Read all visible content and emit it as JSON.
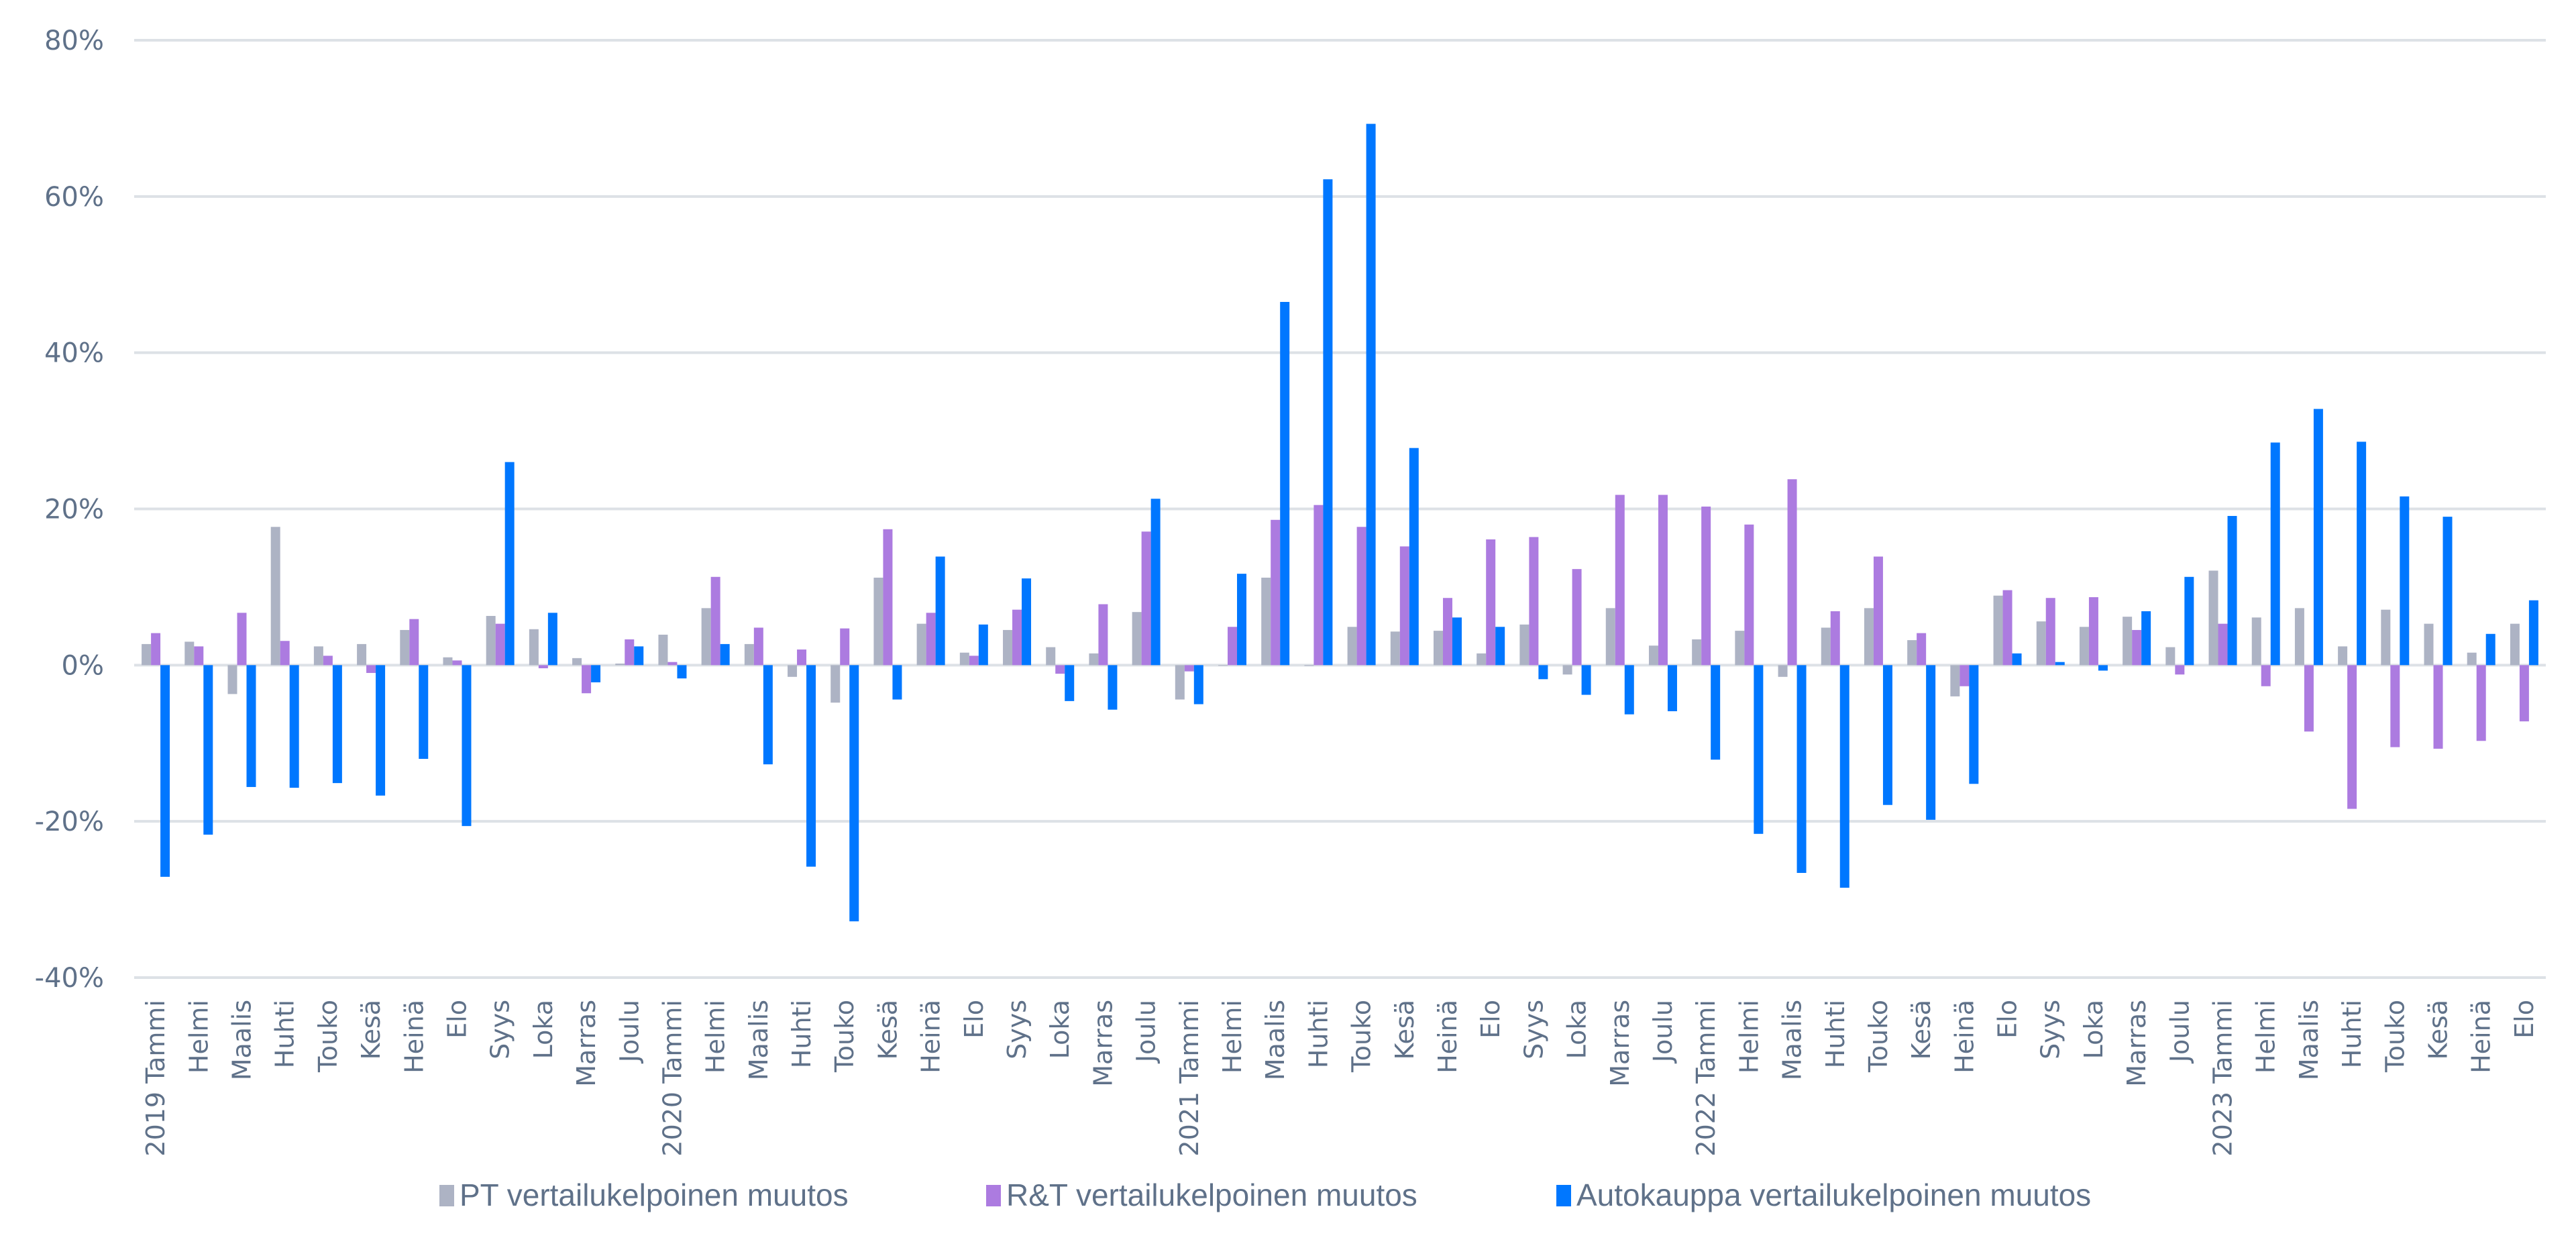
{
  "chart_data": {
    "type": "bar",
    "title": "",
    "xlabel": "",
    "ylabel": "",
    "ylim": [
      -40,
      80
    ],
    "yticks": [
      -40,
      -20,
      0,
      20,
      40,
      60,
      80
    ],
    "ytick_format": "percent",
    "grid": true,
    "legend_position": "bottom",
    "categories": [
      "2019 Tammi",
      "Helmi",
      "Maalis",
      "Huhti",
      "Touko",
      "Kesä",
      "Heinä",
      "Elo",
      "Syys",
      "Loka",
      "Marras",
      "Joulu",
      "2020 Tammi",
      "Helmi",
      "Maalis",
      "Huhti",
      "Touko",
      "Kesä",
      "Heinä",
      "Elo",
      "Syys",
      "Loka",
      "Marras",
      "Joulu",
      "2021 Tammi",
      "Helmi",
      "Maalis",
      "Huhti",
      "Touko",
      "Kesä",
      "Heinä",
      "Elo",
      "Syys",
      "Loka",
      "Marras",
      "Joulu",
      "2022 Tammi",
      "Helmi",
      "Maalis",
      "Huhti",
      "Touko",
      "Kesä",
      "Heinä",
      "Elo",
      "Syys",
      "Loka",
      "Marras",
      "Joulu",
      "2023 Tammi",
      "Helmi",
      "Maalis",
      "Huhti",
      "Touko",
      "Kesä",
      "Heinä",
      "Elo"
    ],
    "series": [
      {
        "name": "PT vertailukelpoinen muutos",
        "color": "#adb3c4",
        "values": [
          2.7,
          3.0,
          -3.7,
          17.7,
          2.4,
          2.7,
          4.5,
          1.0,
          6.3,
          4.6,
          0.9,
          0.2,
          3.9,
          7.3,
          2.7,
          -1.5,
          -4.8,
          11.2,
          5.3,
          1.6,
          4.5,
          2.3,
          1.5,
          6.8,
          -4.4,
          0.0,
          11.2,
          -0.1,
          4.9,
          4.3,
          4.4,
          1.5,
          5.2,
          -1.2,
          7.3,
          2.5,
          3.3,
          4.4,
          -1.5,
          4.8,
          7.3,
          3.2,
          -4.0,
          8.9,
          5.6,
          4.9,
          6.2,
          2.3,
          12.1,
          6.1,
          7.3,
          2.4,
          7.1,
          5.3,
          1.6,
          5.3
        ]
      },
      {
        "name": "R&T vertailukelpoinen muutos",
        "color": "#ac7be0",
        "values": [
          4.1,
          2.4,
          6.7,
          3.1,
          1.2,
          -1.0,
          5.9,
          0.6,
          5.3,
          -0.4,
          -3.6,
          3.3,
          0.4,
          11.3,
          4.8,
          2.0,
          4.7,
          17.4,
          6.7,
          1.2,
          7.1,
          -1.1,
          7.8,
          17.1,
          -0.8,
          4.9,
          18.6,
          20.5,
          17.7,
          15.2,
          8.6,
          16.1,
          16.4,
          12.3,
          21.8,
          21.8,
          20.3,
          18.0,
          23.8,
          6.9,
          13.9,
          4.1,
          -2.7,
          9.6,
          8.6,
          8.7,
          4.5,
          -1.2,
          5.3,
          -2.7,
          -8.5,
          -18.4,
          -10.5,
          -10.7,
          -9.7,
          -7.2
        ]
      },
      {
        "name": "Autokauppa vertailukelpoinen muutos",
        "color": "#0077ff",
        "values": [
          -27.1,
          -21.7,
          -15.6,
          -15.7,
          -15.1,
          -16.7,
          -12.0,
          -20.6,
          26.0,
          6.7,
          -2.2,
          2.4,
          -1.7,
          2.7,
          -12.7,
          -25.8,
          -32.8,
          -4.4,
          13.9,
          5.2,
          11.1,
          -4.6,
          -5.7,
          21.3,
          -5.0,
          11.7,
          46.5,
          62.2,
          69.3,
          27.8,
          6.1,
          4.9,
          -1.8,
          -3.8,
          -6.3,
          -5.9,
          -12.1,
          -21.6,
          -26.6,
          -28.5,
          -17.9,
          -19.8,
          -15.2,
          1.5,
          0.4,
          -0.7,
          6.9,
          11.3,
          19.1,
          28.5,
          32.8,
          28.6,
          21.6,
          19.0,
          4.0,
          8.3
        ]
      }
    ]
  }
}
